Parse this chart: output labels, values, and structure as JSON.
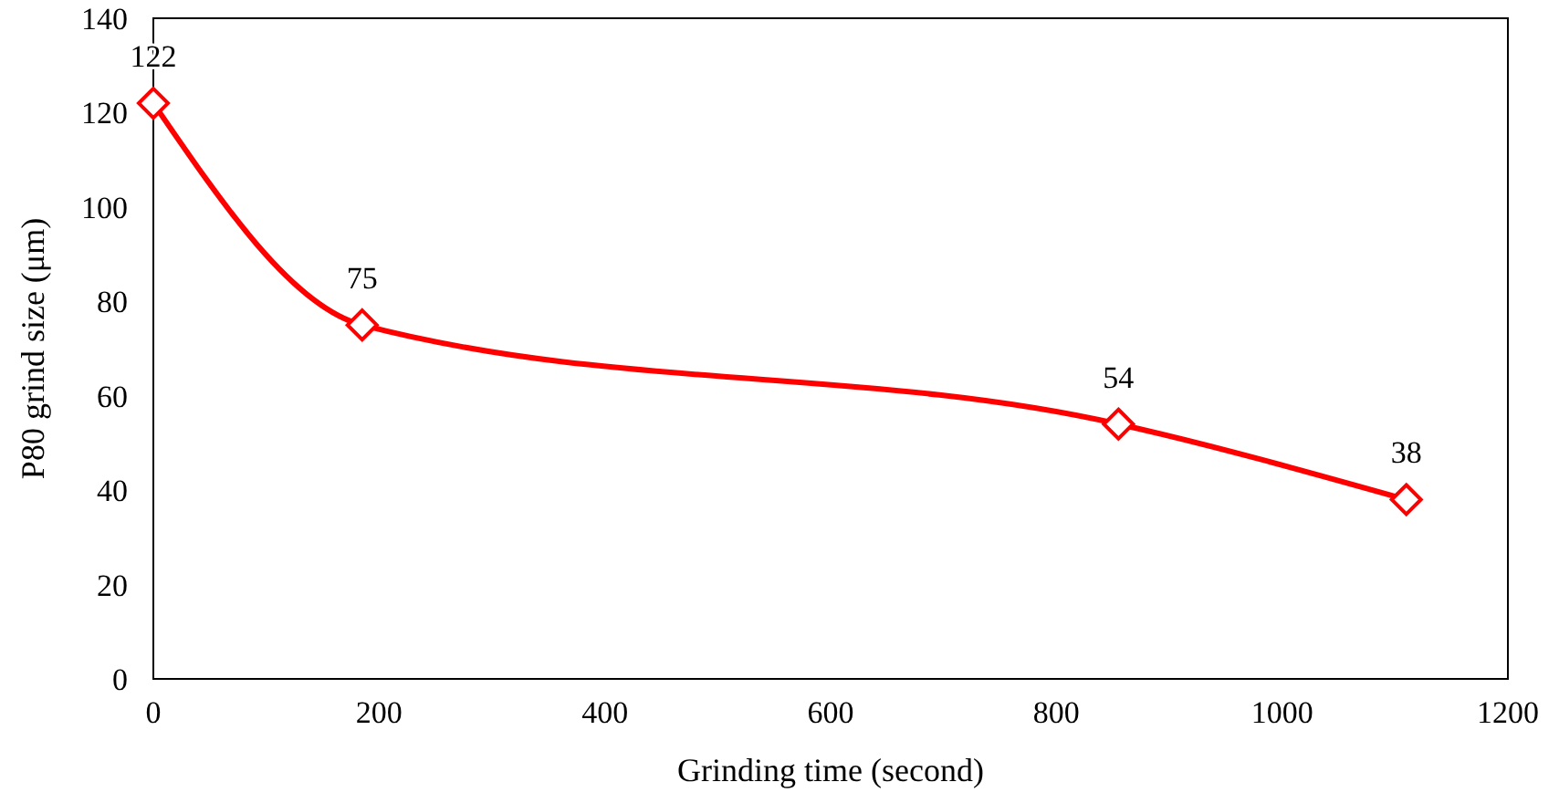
{
  "chart_data": {
    "type": "line",
    "xlabel": "Grinding time (second)",
    "ylabel": "P80 grind size (μm)",
    "x": [
      0,
      185,
      855,
      1110
    ],
    "series": [
      {
        "color": "#ff0000",
        "values": [
          122,
          75,
          54,
          38
        ]
      }
    ],
    "xlim": [
      0,
      1200
    ],
    "xticks": [
      0,
      200,
      400,
      600,
      800,
      1000,
      1200
    ],
    "ylim": [
      0,
      140
    ],
    "yticks": [
      0,
      20,
      40,
      60,
      80,
      100,
      120,
      140
    ],
    "grid": false,
    "marker": "diamond",
    "line_style": "solid",
    "data_labels": true
  }
}
